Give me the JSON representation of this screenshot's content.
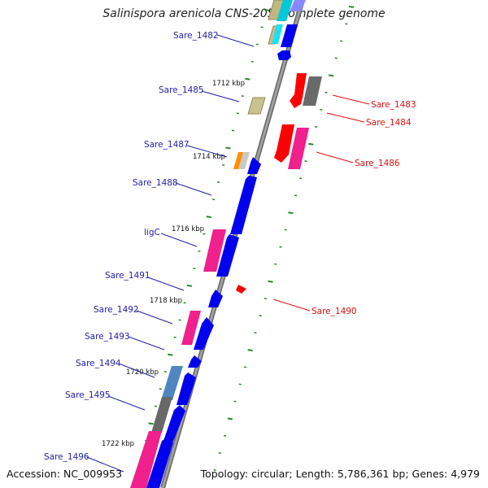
{
  "title": "Salinispora arenicola CNS-205, complete genome",
  "footer": {
    "accession": "Accession: NC_009953",
    "summary": "Topology: circular; Length: 5,786,361 bp; Genes: 4,979"
  },
  "colors": {
    "forward_label": "#1f1fa8",
    "reverse_label": "#e01010",
    "tick": "#2a8a2a",
    "backbone": "#8c8c8c"
  },
  "kbp_ticks": [
    "1712 kbp",
    "1714 kbp",
    "1716 kbp",
    "1718 kbp",
    "1720 kbp",
    "1722 kbp"
  ],
  "forward_labels": [
    "Sare_1482",
    "Sare_1485",
    "Sare_1487",
    "Sare_1488",
    "ligC",
    "Sare_1491",
    "Sare_1492",
    "Sare_1493",
    "Sare_1494",
    "Sare_1495",
    "Sare_1496"
  ],
  "reverse_labels": [
    "Sare_1483",
    "Sare_1484",
    "Sare_1486",
    "Sare_1490"
  ]
}
